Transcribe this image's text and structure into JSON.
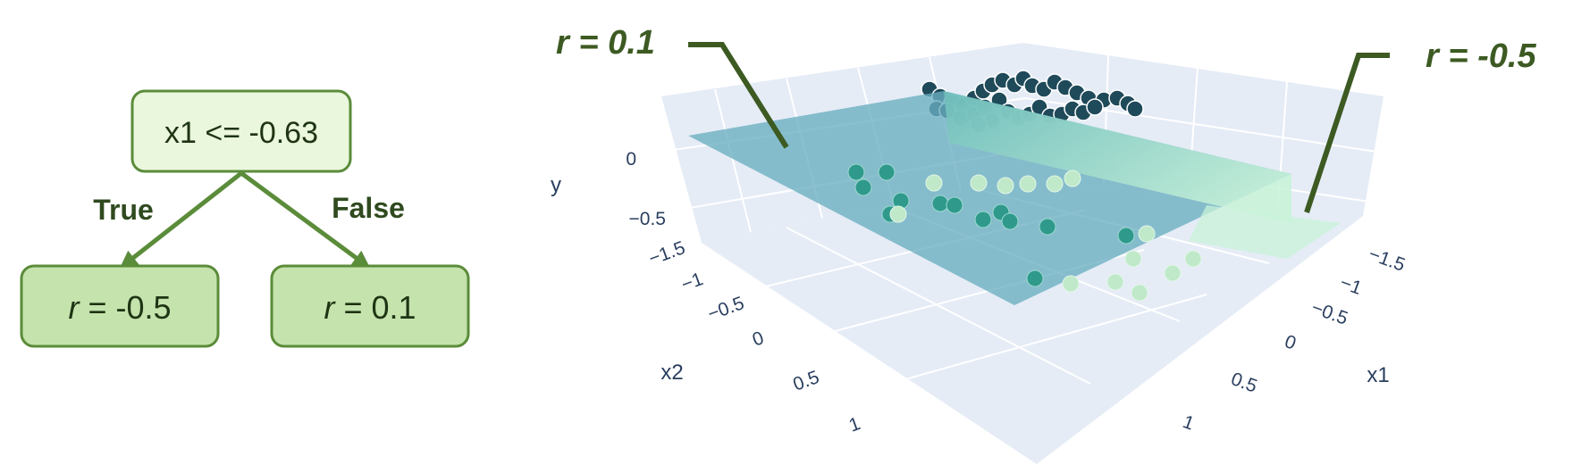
{
  "tree": {
    "root_label": "x1 <= -0.63",
    "edge_true": "True",
    "edge_false": "False",
    "left_leaf": {
      "var": "r",
      "value": " = -0.5"
    },
    "right_leaf": {
      "var": "r",
      "value": " = 0.1"
    }
  },
  "callouts": {
    "left": "r = 0.1",
    "right": "r = -0.5"
  },
  "plot3d": {
    "x1_title": "x1",
    "x2_title": "x2",
    "y_title": "y",
    "x1_ticks": [
      "−1.5",
      "−1",
      "−0.5",
      "0",
      "0.5",
      "1"
    ],
    "x2_ticks": [
      "−1.5",
      "−1",
      "−0.5",
      "0",
      "0.5",
      "1"
    ],
    "y_ticks": [
      "0",
      "−0.5"
    ],
    "colors": {
      "plane_main": "#6aaec0",
      "plane_step": "#a6e6c4",
      "grid_bg": "#e5ecf6",
      "point_dark": "#1f4a5a",
      "point_teal": "#2f9a8c",
      "point_light": "#bfe9c9",
      "tree_fill": "#eaf7dd",
      "leaf_fill": "#c5e3ad",
      "tree_stroke": "#5b8c3a"
    }
  }
}
